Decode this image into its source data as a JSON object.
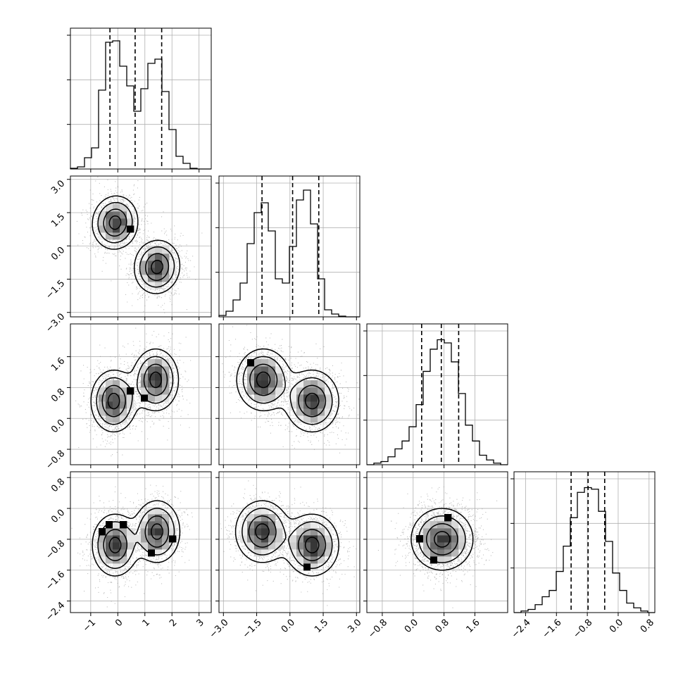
{
  "chart_data": {
    "type": "corner",
    "parameters": [
      {
        "range": [
          -1.75,
          3.45
        ],
        "ticks": [
          -1,
          0,
          1,
          2,
          3
        ],
        "tick_labels": [
          "−1",
          "0",
          "1",
          "2",
          "3"
        ]
      },
      {
        "range": [
          -3.2,
          3.15
        ],
        "ticks": [
          -3.0,
          -1.5,
          0.0,
          1.5,
          3.0
        ],
        "tick_labels": [
          "−3.0",
          "−1.5",
          "0.0",
          "1.5",
          "3.0"
        ]
      },
      {
        "range": [
          -1.2,
          2.45
        ],
        "ticks": [
          -0.8,
          0.0,
          0.8,
          1.6
        ],
        "tick_labels": [
          "−0.8",
          "0.0",
          "0.8",
          "1.6"
        ]
      },
      {
        "range": [
          -2.7,
          0.95
        ],
        "ticks": [
          -2.4,
          -1.6,
          -0.8,
          0.0,
          0.8
        ],
        "tick_labels": [
          "−2.4",
          "−1.6",
          "−0.8",
          "0.0",
          "0.8"
        ]
      }
    ],
    "histograms": [
      {
        "bin_edges": [
          -1.75,
          -1.49,
          -1.23,
          -0.97,
          -0.71,
          -0.45,
          -0.19,
          0.07,
          0.33,
          0.59,
          0.85,
          1.11,
          1.37,
          1.63,
          1.89,
          2.15,
          2.41,
          2.67,
          2.93,
          3.19,
          3.45
        ],
        "counts": [
          0.5,
          1.5,
          8,
          15,
          56,
          90,
          91,
          73,
          59,
          41,
          57,
          75,
          78,
          55,
          28,
          9,
          4,
          0.5,
          0,
          0
        ],
        "quantiles": [
          -0.29,
          0.64,
          1.62
        ],
        "ymax": 100
      },
      {
        "bin_edges": [
          -3.2,
          -2.8825,
          -2.565,
          -2.2475,
          -1.93,
          -1.6125,
          -1.295,
          -0.9775,
          -0.66,
          -0.3425,
          -0.025,
          0.2925,
          0.61,
          0.9275,
          1.245,
          1.5625,
          1.88,
          2.1975,
          2.515,
          2.8325,
          3.15
        ],
        "counts": [
          1,
          4,
          12,
          24,
          52,
          74,
          81,
          61,
          27,
          24,
          50,
          83,
          90,
          66,
          27,
          5,
          2,
          0.5,
          0,
          0
        ],
        "quantiles": [
          -1.26,
          0.12,
          1.3
        ],
        "ymax": 100
      },
      {
        "bin_edges": [
          -1.2,
          -1.0175,
          -0.835,
          -0.6525,
          -0.47,
          -0.2875,
          -0.105,
          0.0775,
          0.26,
          0.4425,
          0.625,
          0.8075,
          0.99,
          1.1725,
          1.355,
          1.5375,
          1.72,
          1.9025,
          2.085,
          2.2675,
          2.45
        ],
        "counts": [
          0,
          1,
          2,
          5,
          10,
          15,
          24,
          38,
          59,
          73,
          79,
          77,
          65,
          45,
          25,
          15,
          6,
          3,
          1,
          0
        ],
        "quantiles": [
          0.22,
          0.73,
          1.18
        ],
        "ymax": 89
      },
      {
        "bin_edges": [
          -2.7,
          -2.5175,
          -2.335,
          -2.1525,
          -1.97,
          -1.7875,
          -1.605,
          -1.4225,
          -1.24,
          -1.0575,
          -0.875,
          -0.6925,
          -0.51,
          -0.3275,
          -0.145,
          0.0375,
          0.22,
          0.4025,
          0.585,
          0.7675,
          0.95
        ],
        "counts": [
          0,
          1,
          2,
          5,
          10,
          14,
          26,
          42,
          60,
          76,
          79,
          78,
          64,
          45,
          25,
          14,
          6,
          3,
          1,
          0
        ],
        "quantiles": [
          -1.22,
          -0.78,
          -0.35
        ],
        "ymax": 89
      }
    ],
    "pairs": [
      {
        "x": 0,
        "y": 1,
        "modes": [
          {
            "cx": -0.1,
            "cy": 1.05,
            "sx": 0.42,
            "sy": 0.6,
            "rho": 0.05,
            "w": 0.5
          },
          {
            "cx": 1.45,
            "cy": -0.95,
            "sx": 0.42,
            "sy": 0.6,
            "rho": 0.05,
            "w": 0.5
          }
        ]
      },
      {
        "x": 0,
        "y": 2,
        "modes": [
          {
            "cx": -0.15,
            "cy": 0.45,
            "sx": 0.42,
            "sy": 0.4,
            "rho": 0.0,
            "w": 0.5
          },
          {
            "cx": 1.4,
            "cy": 1.0,
            "sx": 0.42,
            "sy": 0.4,
            "rho": 0.0,
            "w": 0.5
          }
        ]
      },
      {
        "x": 1,
        "y": 2,
        "modes": [
          {
            "cx": -1.2,
            "cy": 1.0,
            "sx": 0.6,
            "sy": 0.4,
            "rho": 0.0,
            "w": 0.5
          },
          {
            "cx": 1.0,
            "cy": 0.45,
            "sx": 0.6,
            "sy": 0.4,
            "rho": 0.0,
            "w": 0.5
          }
        ]
      },
      {
        "x": 0,
        "y": 3,
        "modes": [
          {
            "cx": -0.1,
            "cy": -0.95,
            "sx": 0.42,
            "sy": 0.4,
            "rho": 0.0,
            "w": 0.5
          },
          {
            "cx": 1.45,
            "cy": -0.6,
            "sx": 0.42,
            "sy": 0.4,
            "rho": 0.0,
            "w": 0.5
          }
        ]
      },
      {
        "x": 1,
        "y": 3,
        "modes": [
          {
            "cx": -1.25,
            "cy": -0.6,
            "sx": 0.6,
            "sy": 0.4,
            "rho": 0.0,
            "w": 0.5
          },
          {
            "cx": 1.0,
            "cy": -0.95,
            "sx": 0.6,
            "sy": 0.4,
            "rho": 0.0,
            "w": 0.5
          }
        ]
      },
      {
        "x": 2,
        "y": 3,
        "modes": [
          {
            "cx": 0.75,
            "cy": -0.8,
            "sx": 0.4,
            "sy": 0.4,
            "rho": 0.0,
            "w": 1.0
          }
        ]
      }
    ],
    "grid": true,
    "colors": {
      "line": "#000000",
      "scatter": "#8c8c8c",
      "grid": "#b0b0b0",
      "background": "#ffffff"
    }
  }
}
